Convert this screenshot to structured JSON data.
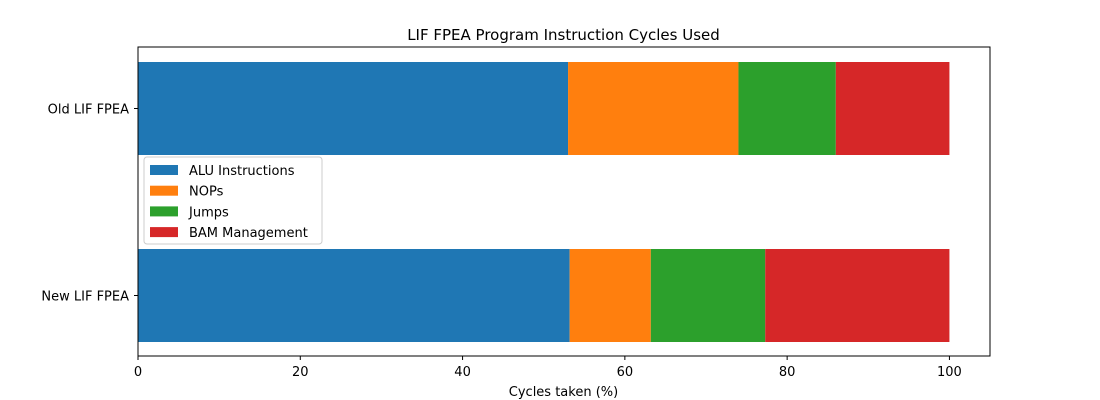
{
  "chart_data": {
    "type": "bar",
    "orientation": "horizontal",
    "stacked": true,
    "title": "LIF FPEA Program Instruction Cycles Used",
    "xlabel": "Cycles taken (%)",
    "ylabel": "",
    "xlim": [
      0,
      105
    ],
    "xticks": [
      "0",
      "20",
      "40",
      "60",
      "80",
      "100"
    ],
    "categories": [
      "Old LIF FPEA",
      "New LIF FPEA"
    ],
    "series": [
      {
        "name": "ALU Instructions",
        "color": "#1f77b4",
        "values": [
          53.0,
          53.2
        ]
      },
      {
        "name": "NOPs",
        "color": "#ff7f0e",
        "values": [
          21.0,
          10.0
        ]
      },
      {
        "name": "Jumps",
        "color": "#2ca02c",
        "values": [
          12.0,
          14.1
        ]
      },
      {
        "name": "BAM Management",
        "color": "#d62728",
        "values": [
          14.0,
          22.7
        ]
      }
    ],
    "legend": "center-left",
    "grid": false
  }
}
